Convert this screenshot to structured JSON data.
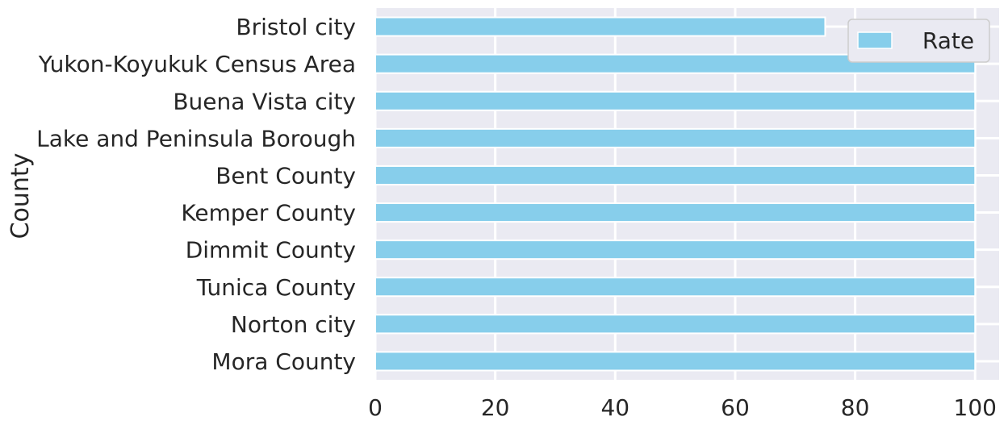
{
  "chart_data": {
    "type": "bar",
    "orientation": "horizontal",
    "title": "",
    "xlabel": "",
    "ylabel": "County",
    "categories": [
      "Bristol city",
      "Yukon-Koyukuk Census Area",
      "Buena Vista city",
      "Lake and Peninsula Borough",
      "Bent County",
      "Kemper County",
      "Dimmit County",
      "Tunica County",
      "Norton city",
      "Mora County"
    ],
    "series": [
      {
        "name": "Rate",
        "color": "#87ceeb",
        "values": [
          75,
          100,
          100,
          100,
          100,
          100,
          100,
          100,
          100,
          100
        ]
      }
    ],
    "xlim": [
      0,
      104
    ],
    "xticks": [
      0,
      20,
      40,
      60,
      80,
      100
    ],
    "xtick_labels": [
      "0",
      "20",
      "40",
      "60",
      "80",
      "100"
    ],
    "grid": true,
    "legend": {
      "position": "top-right",
      "labels": [
        "Rate"
      ]
    }
  },
  "style": {
    "plot_background": "#eaeaf2",
    "grid_color": "#ffffff",
    "text_color": "#262626"
  }
}
